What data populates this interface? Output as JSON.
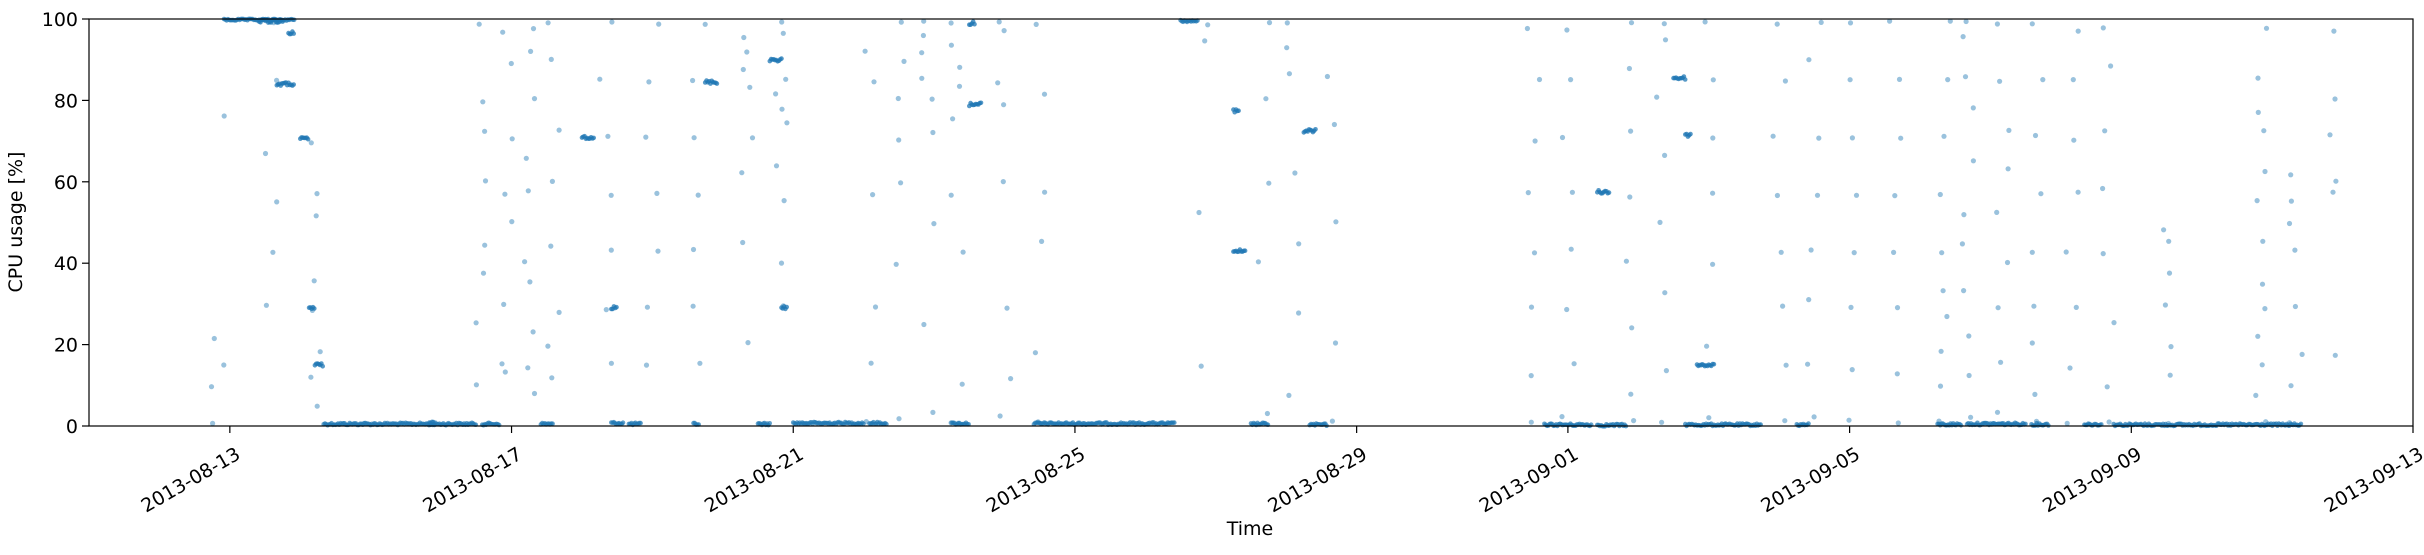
{
  "chart_data": {
    "type": "scatter",
    "title": "",
    "xlabel": "Time",
    "ylabel": "CPU usage [%]",
    "xlim": [
      "2013-08-11",
      "2013-09-13"
    ],
    "ylim": [
      0,
      100
    ],
    "grid": false,
    "legend": "none",
    "point_color": "#1f77b4",
    "x_ticks": [
      "2013-08-13",
      "2013-08-17",
      "2013-08-21",
      "2013-08-25",
      "2013-08-29",
      "2013-09-01",
      "2013-09-05",
      "2013-09-09",
      "2013-09-13"
    ],
    "y_ticks": [
      0,
      20,
      40,
      60,
      80,
      100
    ],
    "series": [
      {
        "low_usage_bands": [
          {
            "start": "2013-08-14 08:00",
            "end": "2013-08-16 12:00",
            "value": 0.5
          },
          {
            "start": "2013-08-16 14:00",
            "end": "2013-08-16 20:00",
            "value": 0.5
          },
          {
            "start": "2013-08-17 10:00",
            "end": "2013-08-17 14:00",
            "value": 0.5
          },
          {
            "start": "2013-08-18 10:00",
            "end": "2013-08-18 14:00",
            "value": 0.7
          },
          {
            "start": "2013-08-18 16:00",
            "end": "2013-08-18 20:00",
            "value": 0.5
          },
          {
            "start": "2013-08-19 14:00",
            "end": "2013-08-19 16:00",
            "value": 0.5
          },
          {
            "start": "2013-08-20 12:00",
            "end": "2013-08-20 16:00",
            "value": 0.5
          },
          {
            "start": "2013-08-21 00:00",
            "end": "2013-08-22 00:00",
            "value": 0.7
          },
          {
            "start": "2013-08-22 02:00",
            "end": "2013-08-22 08:00",
            "value": 0.7
          },
          {
            "start": "2013-08-23 06:00",
            "end": "2013-08-23 12:00",
            "value": 0.6
          },
          {
            "start": "2013-08-24 10:00",
            "end": "2013-08-26 10:00",
            "value": 0.6
          },
          {
            "start": "2013-08-27 12:00",
            "end": "2013-08-27 18:00",
            "value": 0.5
          },
          {
            "start": "2013-08-28 08:00",
            "end": "2013-08-28 14:00",
            "value": 0.3
          },
          {
            "start": "2013-08-31 16:00",
            "end": "2013-09-01 08:00",
            "value": 0.3
          },
          {
            "start": "2013-09-01 10:00",
            "end": "2013-09-01 20:00",
            "value": 0.2
          },
          {
            "start": "2013-09-02 16:00",
            "end": "2013-09-03 18:00",
            "value": 0.3
          },
          {
            "start": "2013-09-04 06:00",
            "end": "2013-09-04 10:00",
            "value": 0.3
          },
          {
            "start": "2013-09-06 06:00",
            "end": "2013-09-06 14:00",
            "value": 0.4
          },
          {
            "start": "2013-09-06 16:00",
            "end": "2013-09-07 12:00",
            "value": 0.5
          },
          {
            "start": "2013-09-07 14:00",
            "end": "2013-09-07 20:00",
            "value": 0.4
          },
          {
            "start": "2013-09-08 08:00",
            "end": "2013-09-08 14:00",
            "value": 0.4
          },
          {
            "start": "2013-09-08 18:00",
            "end": "2013-09-11 10:00",
            "value": 0.3
          }
        ],
        "high_usage_bands": [
          {
            "start": "2013-08-12 22:00",
            "end": "2013-08-13 22:00",
            "value": 99.8
          },
          {
            "start": "2013-08-26 12:00",
            "end": "2013-08-26 18:00",
            "value": 99.5
          }
        ],
        "clusters": [
          {
            "start": "2013-08-13 10:00",
            "end": "2013-08-13 18:00",
            "value": 99.5
          },
          {
            "start": "2013-08-13 20:00",
            "end": "2013-08-13 22:00",
            "value": 96.5
          },
          {
            "start": "2013-08-13 16:00",
            "end": "2013-08-13 22:00",
            "value": 84
          },
          {
            "start": "2013-08-14 00:00",
            "end": "2013-08-14 03:00",
            "value": 70.5
          },
          {
            "start": "2013-08-14 03:00",
            "end": "2013-08-14 05:00",
            "value": 29
          },
          {
            "start": "2013-08-14 05:00",
            "end": "2013-08-14 08:00",
            "value": 15
          },
          {
            "start": "2013-08-15 20:00",
            "end": "2013-08-15 22:00",
            "value": 0.6
          },
          {
            "start": "2013-08-18 00:00",
            "end": "2013-08-18 04:00",
            "value": 71
          },
          {
            "start": "2013-08-18 10:00",
            "end": "2013-08-18 12:00",
            "value": 29
          },
          {
            "start": "2013-08-19 18:00",
            "end": "2013-08-19 22:00",
            "value": 84.5
          },
          {
            "start": "2013-08-20 16:00",
            "end": "2013-08-20 20:00",
            "value": 90
          },
          {
            "start": "2013-08-20 20:00",
            "end": "2013-08-20 22:00",
            "value": 29
          },
          {
            "start": "2013-08-23 12:00",
            "end": "2013-08-23 14:00",
            "value": 99
          },
          {
            "start": "2013-08-23 12:00",
            "end": "2013-08-23 16:00",
            "value": 79
          },
          {
            "start": "2013-08-27 06:00",
            "end": "2013-08-27 08:00",
            "value": 77.5
          },
          {
            "start": "2013-08-27 06:00",
            "end": "2013-08-27 10:00",
            "value": 43
          },
          {
            "start": "2013-08-28 06:00",
            "end": "2013-08-28 10:00",
            "value": 72.5
          },
          {
            "start": "2013-09-01 10:00",
            "end": "2013-09-01 14:00",
            "value": 57.5
          },
          {
            "start": "2013-09-02 12:00",
            "end": "2013-09-02 16:00",
            "value": 85.5
          },
          {
            "start": "2013-09-02 16:00",
            "end": "2013-09-02 18:00",
            "value": 71.5
          },
          {
            "start": "2013-09-02 20:00",
            "end": "2013-09-03 02:00",
            "value": 15
          }
        ],
        "scatter_columns": [
          {
            "date": "2013-08-12 20:00",
            "values": [
              0.5,
              15,
              21,
              76,
              10
            ]
          },
          {
            "date": "2013-08-13 14:00",
            "values": [
              43,
              55,
              67,
              85,
              99,
              30
            ]
          },
          {
            "date": "2013-08-14 06:00",
            "values": [
              5,
              18,
              28,
              36,
              52,
              70,
              57,
              12
            ]
          },
          {
            "date": "2013-08-16 14:00",
            "values": [
              10,
              25,
              38,
              60,
              72,
              80,
              99,
              44
            ]
          },
          {
            "date": "2013-08-16 22:00",
            "values": [
              13,
              15,
              30,
              50,
              71,
              89,
              97,
              57
            ]
          },
          {
            "date": "2013-08-17 06:00",
            "values": [
              8,
              23,
              40,
              58,
              66,
              80,
              92,
              98,
              35,
              14
            ]
          },
          {
            "date": "2013-08-17 14:00",
            "values": [
              12,
              28,
              44,
              60,
              73,
              90,
              99,
              20
            ]
          },
          {
            "date": "2013-08-18 08:00",
            "values": [
              15,
              29,
              43,
              57,
              71,
              85,
              99
            ]
          },
          {
            "date": "2013-08-19 00:00",
            "values": [
              15,
              29,
              43,
              57,
              71,
              85,
              99
            ]
          },
          {
            "date": "2013-08-19 16:00",
            "values": [
              15,
              29,
              43,
              57,
              71,
              85,
              99
            ]
          },
          {
            "date": "2013-08-20 08:00",
            "values": [
              20,
              45,
              71,
              83,
              95,
              92,
              88,
              62
            ]
          },
          {
            "date": "2013-08-20 20:00",
            "values": [
              40,
              55,
              64,
              78,
              82,
              85,
              96,
              99,
              74,
              30
            ]
          },
          {
            "date": "2013-08-22 02:00",
            "values": [
              1,
              15,
              29,
              57,
              85,
              92
            ]
          },
          {
            "date": "2013-08-22 12:00",
            "values": [
              2,
              40,
              60,
              70,
              80,
              90,
              99
            ]
          },
          {
            "date": "2013-08-22 22:00",
            "values": [
              3,
              25,
              50,
              72,
              80,
              85,
              92,
              96,
              99
            ]
          },
          {
            "date": "2013-08-23 08:00",
            "values": [
              1,
              10,
              43,
              57,
              75,
              83,
              88,
              94,
              99
            ]
          },
          {
            "date": "2013-08-24 00:00",
            "values": [
              2,
              12,
              29,
              60,
              79,
              84,
              97,
              99
            ]
          },
          {
            "date": "2013-08-24 12:00",
            "values": [
              1,
              18,
              45,
              57,
              82,
              99
            ]
          },
          {
            "date": "2013-08-26 20:00",
            "values": [
              15,
              52,
              99,
              95
            ]
          },
          {
            "date": "2013-08-27 16:00",
            "values": [
              3,
              40,
              60,
              80,
              99
            ]
          },
          {
            "date": "2013-08-28 02:00",
            "values": [
              8,
              28,
              45,
              62,
              87,
              93,
              99
            ]
          },
          {
            "date": "2013-08-28 16:00",
            "values": [
              1,
              20,
              50,
              74,
              86
            ]
          },
          {
            "date": "2013-08-31 12:00",
            "values": [
              1,
              12,
              29,
              43,
              57,
              70,
              85,
              98
            ]
          },
          {
            "date": "2013-09-01 00:00",
            "values": [
              2,
              15,
              29,
              43,
              57,
              71,
              85,
              97
            ]
          },
          {
            "date": "2013-09-01 20:00",
            "values": [
              1,
              8,
              24,
              40,
              56,
              72,
              88,
              99
            ]
          },
          {
            "date": "2013-09-02 08:00",
            "values": [
              1,
              14,
              33,
              50,
              66,
              81,
              95,
              99
            ]
          },
          {
            "date": "2013-09-03 00:00",
            "values": [
              2,
              20,
              40,
              57,
              71,
              85,
              99
            ]
          },
          {
            "date": "2013-09-04 00:00",
            "values": [
              1,
              15,
              29,
              43,
              57,
              71,
              85,
              99
            ]
          },
          {
            "date": "2013-09-04 12:00",
            "values": [
              2,
              15,
              31,
              43,
              57,
              71,
              90,
              99
            ]
          },
          {
            "date": "2013-09-05 00:00",
            "values": [
              1,
              14,
              29,
              43,
              57,
              71,
              85,
              99
            ]
          },
          {
            "date": "2013-09-05 16:00",
            "values": [
              0.5,
              13,
              29,
              43,
              57,
              71,
              85,
              99
            ]
          },
          {
            "date": "2013-09-06 08:00",
            "values": [
              1,
              10,
              18,
              27,
              33,
              43,
              57,
              71,
              85,
              99
            ]
          },
          {
            "date": "2013-09-06 16:00",
            "values": [
              2,
              12,
              22,
              33,
              45,
              52,
              65,
              78,
              86,
              96,
              99
            ]
          },
          {
            "date": "2013-09-07 04:00",
            "values": [
              3,
              16,
              29,
              40,
              52,
              63,
              73,
              85,
              99
            ]
          },
          {
            "date": "2013-09-07 16:00",
            "values": [
              1,
              8,
              20,
              29,
              43,
              57,
              71,
              85,
              99
            ]
          },
          {
            "date": "2013-09-08 04:00",
            "values": [
              1,
              14,
              29,
              43,
              57,
              70,
              85,
              97
            ]
          },
          {
            "date": "2013-09-08 16:00",
            "values": [
              0.5,
              10,
              25,
              42,
              58,
              73,
              88,
              98
            ]
          },
          {
            "date": "2013-09-09 12:00",
            "values": [
              1,
              12,
              20,
              30,
              38,
              45,
              48
            ]
          },
          {
            "date": "2013-09-10 20:00",
            "values": [
              1,
              8,
              15,
              22,
              29,
              35,
              45,
              55,
              63,
              73,
              77,
              85,
              98
            ]
          },
          {
            "date": "2013-09-11 08:00",
            "values": [
              1,
              10,
              18,
              29,
              43,
              50,
              55,
              62
            ]
          },
          {
            "date": "2013-09-11 20:00",
            "values": [
              17,
              57,
              60,
              72,
              80,
              97
            ]
          }
        ]
      }
    ]
  }
}
